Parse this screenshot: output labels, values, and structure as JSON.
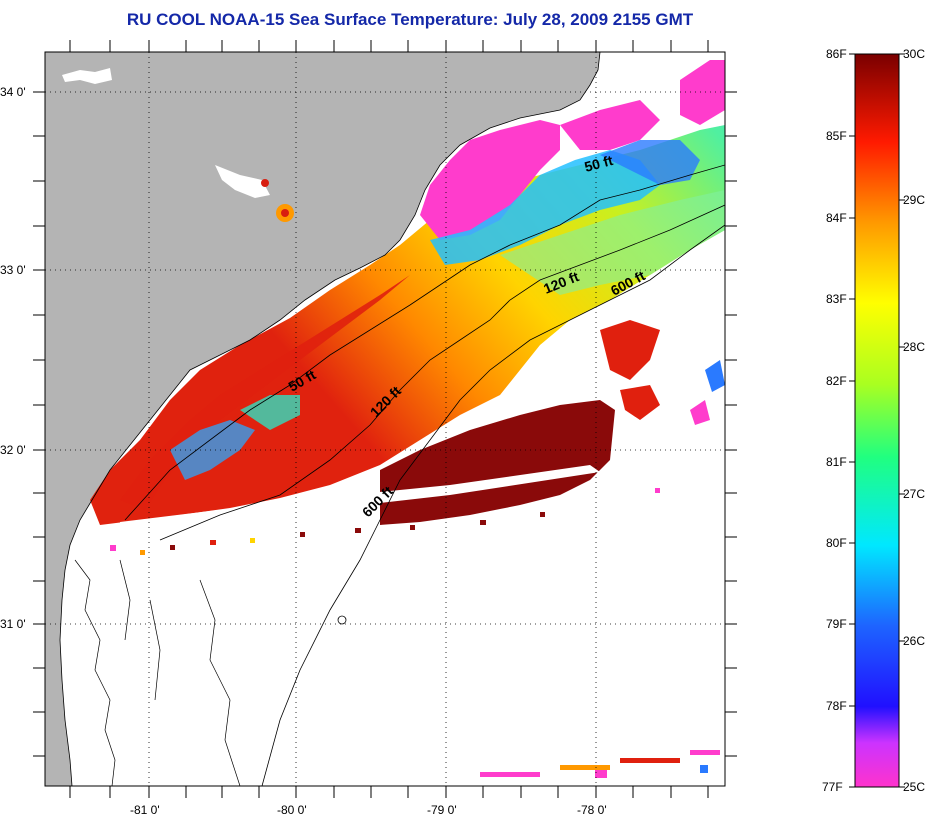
{
  "title": "RU COOL  NOAA-15  Sea Surface Temperature:  July 28, 2009 2155 GMT",
  "map": {
    "lat_labels": [
      "34 0'",
      "33 0'",
      "32 0'",
      "31 0'"
    ],
    "lon_labels": [
      "-81 0'",
      "-80 0'",
      "-79 0'",
      "-78 0'"
    ],
    "contour_labels": [
      "50 ft",
      "50 ft",
      "120 ft",
      "120 ft",
      "600 ft",
      "600 ft"
    ],
    "colors": {
      "land": "#b4b4b4",
      "cloud": "#ffffff",
      "warm": "#d81e10",
      "cool": "#ff33cc"
    }
  },
  "colorbar": {
    "fahrenheit": [
      "86F",
      "85F",
      "84F",
      "83F",
      "82F",
      "81F",
      "80F",
      "79F",
      "78F",
      "77F"
    ],
    "celsius": [
      "30C",
      "29C",
      "28C",
      "27C",
      "26C",
      "25C"
    ]
  }
}
